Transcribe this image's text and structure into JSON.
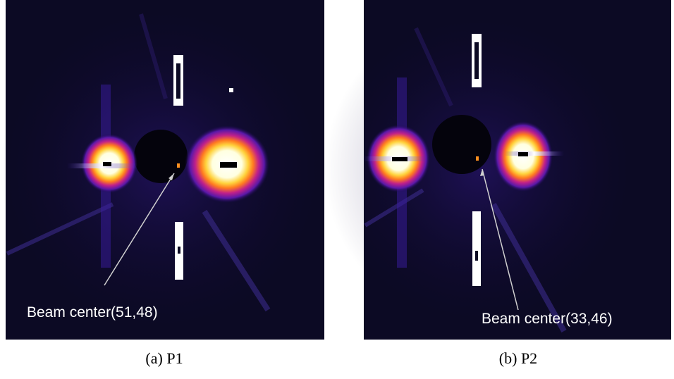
{
  "panels": [
    {
      "caption": "(a) P1",
      "annotation": "Beam center(51,48)"
    },
    {
      "caption": "(b) P2",
      "annotation": "Beam center(33,46)"
    }
  ]
}
